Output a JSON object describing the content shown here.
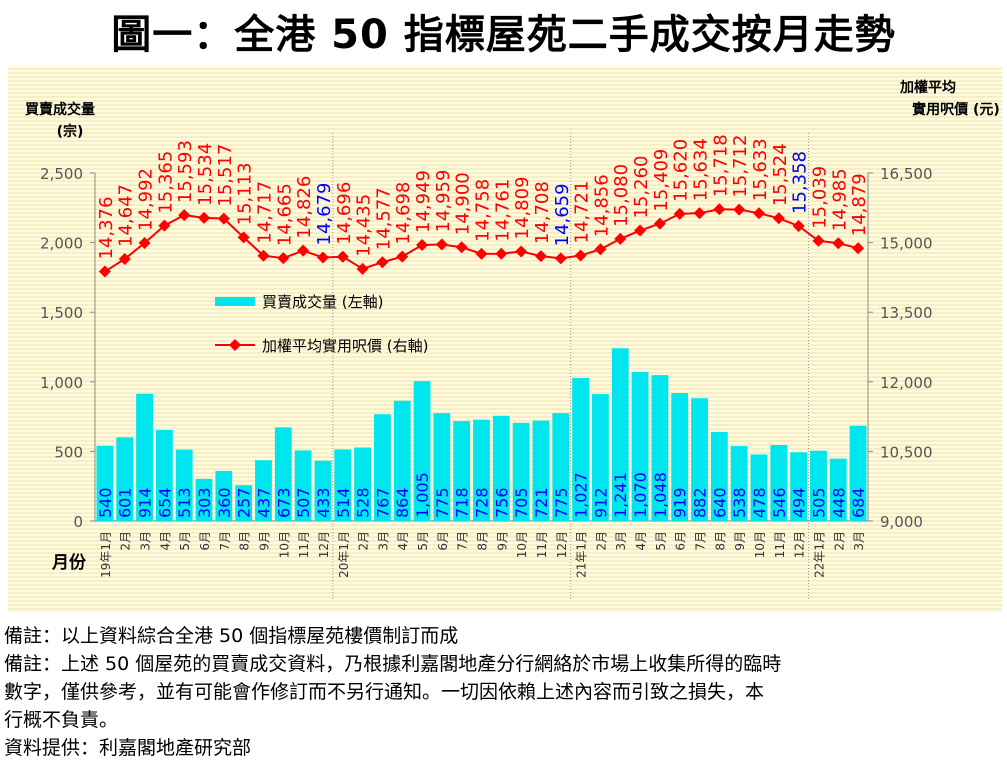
{
  "title": "圖一：全港 50 指標屋苑二手成交按月走勢",
  "chart_data": {
    "type": "bar+line",
    "title": "圖一：全港 50 指標屋苑二手成交按月走勢",
    "left_axis_label": [
      "買賣成交量",
      "(宗)"
    ],
    "right_axis_label": [
      "加權平均",
      "實用呎價 (元)"
    ],
    "xlabel": "月份",
    "ylim_left": [
      0,
      2500
    ],
    "ylim_right": [
      9000,
      16500
    ],
    "left_ticks": [
      "0",
      "500",
      "1,000",
      "1,500",
      "2,000",
      "2,500"
    ],
    "right_ticks": [
      "9,000",
      "10,500",
      "12,000",
      "13,500",
      "15,000",
      "16,500"
    ],
    "categories": [
      "19年1月",
      "2月",
      "3月",
      "4月",
      "5月",
      "6月",
      "7月",
      "8月",
      "9月",
      "10月",
      "11月",
      "12月",
      "20年1月",
      "2月",
      "3月",
      "4月",
      "5月",
      "6月",
      "7月",
      "8月",
      "9月",
      "10月",
      "11月",
      "12月",
      "21年1月",
      "2月",
      "3月",
      "4月",
      "5月",
      "6月",
      "7月",
      "8月",
      "9月",
      "10月",
      "11月",
      "12月",
      "22年1月",
      "2月",
      "3月"
    ],
    "series": [
      {
        "name": "買賣成交量 (左軸)",
        "type": "bar",
        "axis": "left",
        "color": "#00e6ee",
        "values": [
          540,
          601,
          914,
          654,
          513,
          303,
          360,
          257,
          437,
          673,
          507,
          433,
          514,
          528,
          767,
          864,
          1005,
          775,
          718,
          728,
          756,
          705,
          721,
          775,
          1027,
          912,
          1241,
          1070,
          1048,
          919,
          882,
          640,
          538,
          478,
          546,
          494,
          505,
          448,
          684
        ]
      },
      {
        "name": "加權平均實用呎價 (右軸)",
        "type": "line",
        "axis": "right",
        "color": "#ff0000",
        "values": [
          14376,
          14647,
          14992,
          15365,
          15593,
          15534,
          15517,
          15113,
          14717,
          14665,
          14826,
          14679,
          14696,
          14435,
          14577,
          14698,
          14949,
          14959,
          14900,
          14758,
          14761,
          14809,
          14708,
          14659,
          14721,
          14856,
          15080,
          15260,
          15409,
          15620,
          15634,
          15718,
          15712,
          15633,
          15524,
          15358,
          15039,
          14985,
          14879
        ]
      }
    ],
    "highlight_label_color": "#0000ff",
    "legend": "upper-left inside plot"
  },
  "notes": [
    "備註：以上資料綜合全港 50 個指標屋苑樓價制訂而成",
    "備註：上述 50 個屋苑的買賣成交資料，乃根據利嘉閣地產分行網絡於市場上收集所得的臨時",
    "數字，僅供參考，並有可能會作修訂而不另行通知。一切因依賴上述內容而引致之損失，本",
    "行概不負責。",
    "資料提供：利嘉閣地產研究部"
  ]
}
